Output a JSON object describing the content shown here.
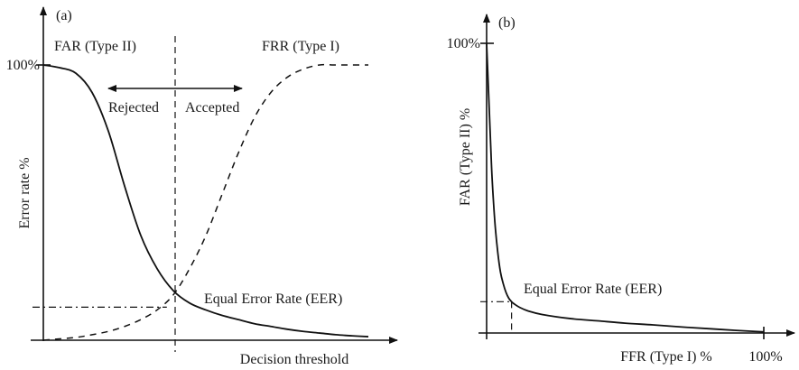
{
  "chart_data": [
    {
      "panel_label": "(a)",
      "type": "line",
      "xlabel": "Decision threshold",
      "ylabel": "Error rate %",
      "ytick": "100%",
      "xlim": [
        0,
        100
      ],
      "ylim": [
        0,
        100
      ],
      "grid": false,
      "series": [
        {
          "name": "FAR (Type II)",
          "style": "solid",
          "x": [
            0,
            5,
            10,
            15,
            20,
            25,
            30,
            35,
            40,
            45,
            50,
            55,
            60,
            65,
            70,
            75,
            80,
            85,
            90,
            95,
            100
          ],
          "y": [
            100,
            99,
            97,
            90,
            76,
            56,
            38,
            26,
            18,
            13.5,
            11,
            9,
            7.5,
            6,
            5,
            4,
            3.2,
            2.6,
            2,
            1.6,
            1.3
          ]
        },
        {
          "name": "FRR (Type I)",
          "style": "dashed",
          "x": [
            0,
            5,
            10,
            15,
            20,
            25,
            30,
            35,
            40,
            45,
            50,
            55,
            60,
            65,
            70,
            75,
            80,
            85,
            90,
            95,
            100
          ],
          "y": [
            0,
            0.5,
            1,
            2,
            3.2,
            5,
            7.5,
            11,
            16.5,
            26,
            38,
            53,
            68,
            81,
            90,
            95.5,
            98.5,
            100,
            100,
            100,
            100
          ]
        }
      ],
      "annotations": {
        "eer_label": "Equal Error Rate (EER)",
        "eer_point": {
          "x": 38,
          "y": 12
        },
        "rejected_label": "Rejected",
        "accepted_label": "Accepted"
      }
    },
    {
      "panel_label": "(b)",
      "type": "line",
      "xlabel": "FFR (Type I) %",
      "ylabel": "FAR (Type II) %",
      "ytick": "100%",
      "xtick": "100%",
      "xlim": [
        0,
        100
      ],
      "ylim": [
        0,
        100
      ],
      "grid": false,
      "series": [
        {
          "name": "",
          "style": "solid",
          "x": [
            0,
            0.5,
            1,
            1.5,
            2,
            3,
            4,
            5,
            6,
            7,
            8,
            9,
            10,
            12,
            15,
            20,
            30,
            40,
            50,
            60,
            70,
            80,
            90,
            100
          ],
          "y": [
            100,
            88,
            76,
            64,
            53,
            38,
            28,
            21,
            17,
            14,
            12,
            10.8,
            10,
            8.8,
            7.6,
            6.4,
            5,
            4.2,
            3.4,
            2.8,
            2.1,
            1.5,
            0.9,
            0.4
          ]
        }
      ],
      "annotations": {
        "eer_label": "Equal Error Rate (EER)",
        "eer_point": {
          "x": 9,
          "y": 10.8
        }
      }
    }
  ]
}
